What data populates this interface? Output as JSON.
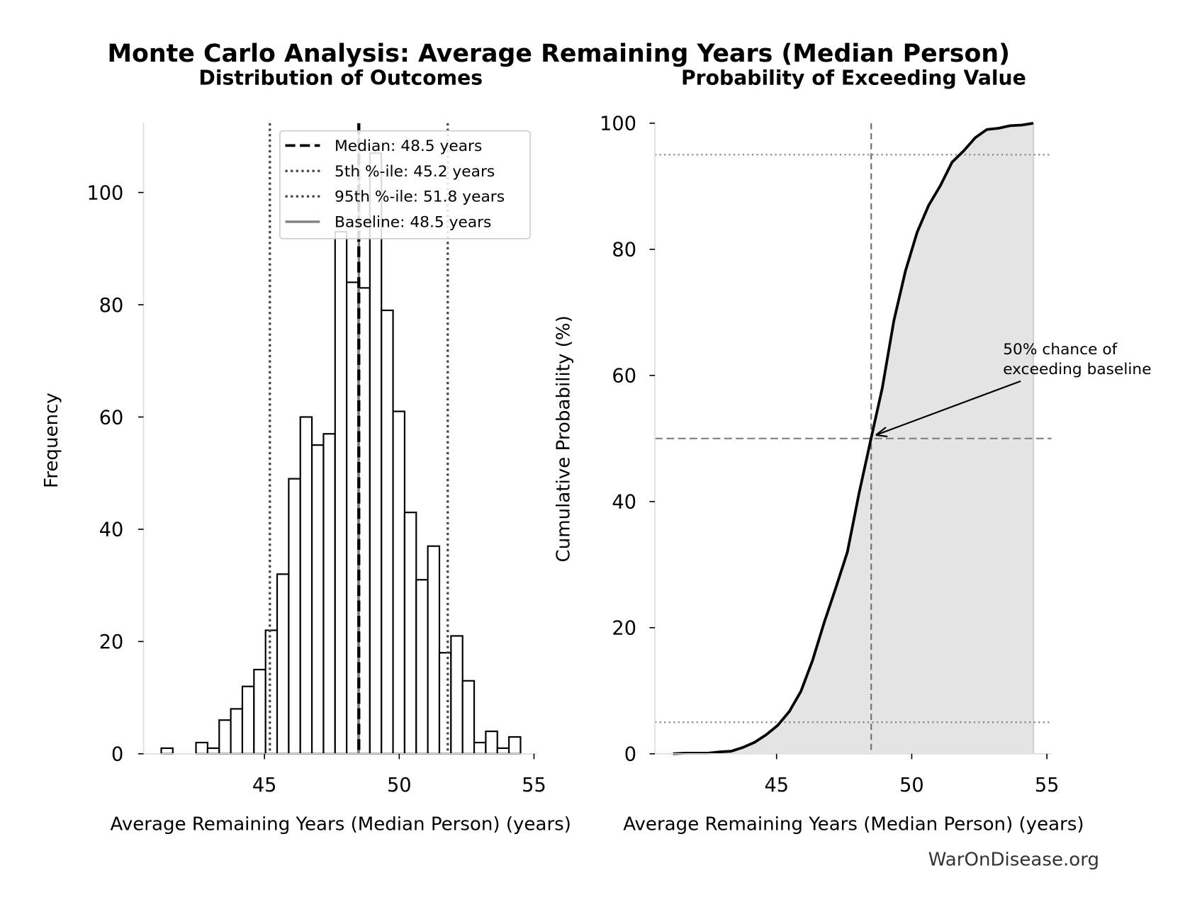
{
  "figure": {
    "title": "Monte Carlo Analysis: Average Remaining Years (Median Person)",
    "watermark": "WarOnDisease.org"
  },
  "chart_data": [
    {
      "type": "bar",
      "subtype": "histogram",
      "title": "Distribution of Outcomes",
      "xlabel": "Average Remaining Years (Median Person) (years)",
      "ylabel": "Frequency",
      "xlim": [
        40.5,
        55.2
      ],
      "ylim": [
        0,
        112
      ],
      "xticks": [
        "45",
        "50",
        "55"
      ],
      "xtick_values": [
        45,
        50,
        55
      ],
      "yticks": [
        "0",
        "20",
        "40",
        "60",
        "80",
        "100"
      ],
      "ytick_values": [
        0,
        20,
        40,
        60,
        80,
        100
      ],
      "bin_edges": [
        41.17,
        41.6,
        42.03,
        42.46,
        42.89,
        43.32,
        43.75,
        44.18,
        44.61,
        45.04,
        45.47,
        45.9,
        46.33,
        46.76,
        47.19,
        47.62,
        48.05,
        48.48,
        48.91,
        49.34,
        49.77,
        50.2,
        50.63,
        51.06,
        51.49,
        51.92,
        52.35,
        52.78,
        53.21,
        53.64,
        54.07,
        54.5
      ],
      "counts": [
        1,
        0,
        0,
        2,
        1,
        6,
        8,
        12,
        15,
        22,
        32,
        49,
        60,
        55,
        57,
        93,
        84,
        83,
        107,
        79,
        61,
        43,
        31,
        37,
        18,
        21,
        13,
        2,
        4,
        1,
        3
      ],
      "bar_fill": "#ffffff",
      "bar_edge": "#000000",
      "reference_lines": [
        {
          "label": "Median: 48.5 years",
          "value": 48.5,
          "style": "dashed",
          "color": "#000000"
        },
        {
          "label": "5th %-ile: 45.2 years",
          "value": 45.2,
          "style": "dotted",
          "color": "#444444"
        },
        {
          "label": "95th %-ile: 51.8 years",
          "value": 51.8,
          "style": "dotted",
          "color": "#444444"
        },
        {
          "label": "Baseline: 48.5 years",
          "value": 48.5,
          "style": "solid",
          "color": "#808080"
        }
      ],
      "legend_position": "top-right",
      "grid": false
    },
    {
      "type": "area",
      "subtype": "cumulative",
      "title": "Probability of Exceeding Value",
      "xlabel": "Average Remaining Years (Median Person) (years)",
      "ylabel": "Cumulative Probability (%)",
      "xlim": [
        40.5,
        55.2
      ],
      "ylim": [
        0,
        100
      ],
      "xticks": [
        "45",
        "50",
        "55"
      ],
      "xtick_values": [
        45,
        50,
        55
      ],
      "yticks": [
        "0",
        "20",
        "40",
        "60",
        "80",
        "100"
      ],
      "ytick_values": [
        0,
        20,
        40,
        60,
        80,
        100
      ],
      "x": [
        41.17,
        41.6,
        42.03,
        42.46,
        42.89,
        43.32,
        43.75,
        44.18,
        44.61,
        45.04,
        45.47,
        45.9,
        46.33,
        46.76,
        47.19,
        47.62,
        48.05,
        48.48,
        48.91,
        49.34,
        49.77,
        50.2,
        50.63,
        51.06,
        51.49,
        51.92,
        52.35,
        52.78,
        53.21,
        53.64,
        54.07,
        54.5
      ],
      "y": [
        0,
        0.1,
        0.1,
        0.1,
        0.3,
        0.4,
        1.0,
        1.8,
        3.0,
        4.5,
        6.7,
        9.9,
        14.8,
        20.8,
        26.3,
        32.0,
        41.3,
        49.7,
        58.0,
        68.7,
        76.6,
        82.7,
        87.0,
        90.1,
        93.8,
        95.6,
        97.7,
        99.0,
        99.2,
        99.6,
        99.7,
        100
      ],
      "fill_color": "#e4e4e4",
      "line_color": "#000000",
      "hlines": [
        {
          "value": 5,
          "style": "dotted"
        },
        {
          "value": 50,
          "style": "dashed"
        },
        {
          "value": 95,
          "style": "dotted"
        }
      ],
      "vline": {
        "value": 48.5,
        "style": "dashed"
      },
      "annotation": {
        "lines": [
          "50% chance of",
          "exceeding baseline"
        ],
        "target": [
          48.5,
          50
        ]
      },
      "grid": false
    }
  ]
}
